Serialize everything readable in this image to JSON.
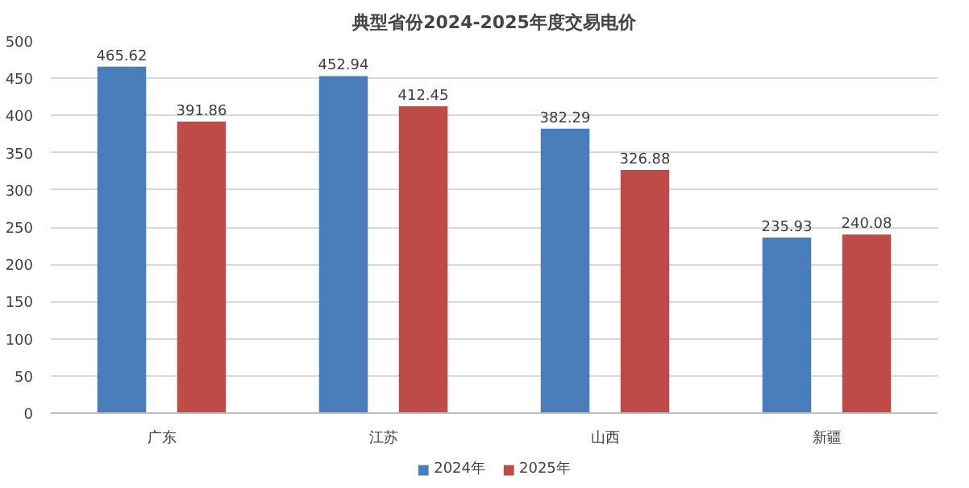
{
  "chart_data": {
    "type": "bar",
    "title": "典型省份2024-2025年度交易电价",
    "categories": [
      "广东",
      "江苏",
      "山西",
      "新疆"
    ],
    "series": [
      {
        "name": "2024年",
        "color": "#4a7ebb",
        "values": [
          465.62,
          452.94,
          382.29,
          235.93
        ]
      },
      {
        "name": "2025年",
        "color": "#be4b48",
        "values": [
          391.86,
          412.45,
          326.88,
          240.08
        ]
      }
    ],
    "ylim": [
      0,
      500
    ],
    "yticks": [
      0,
      50,
      100,
      150,
      200,
      250,
      300,
      350,
      400,
      450,
      500
    ],
    "grid": "y",
    "legend": "bottom",
    "data_labels": true
  }
}
